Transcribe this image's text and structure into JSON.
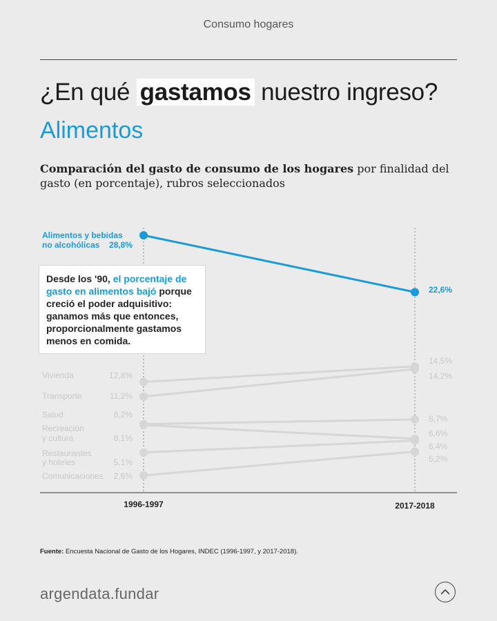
{
  "header": {
    "section": "Consumo hogares"
  },
  "title": {
    "pre": "¿En qué ",
    "highlight": "gastamos",
    "post": " nuestro ingreso?",
    "subtitle": "Alimentos"
  },
  "description": {
    "bold": "Comparación del gasto de consumo de los hogares",
    "rest": " por finalidad del gasto (en porcentaje), rubros seleccionados"
  },
  "callout": {
    "pre": "Desde los '90, ",
    "highlight": "el porcentaje de gasto en alimentos bajó",
    "post": " porque creció el poder adquisitivo: ganamos más que entonces, proporcionalmente gastamos menos en comida."
  },
  "footer": {
    "source_label": "Fuente:",
    "source_text": " Encuesta Nacional de Gasto de los Hogares, INDEC (1996-1997, y 2017-2018).",
    "brand": "argendata.fundar",
    "up_icon": "chevron-up-icon"
  },
  "colors": {
    "highlight": "#1a9bd7",
    "muted": "#d6d6d6",
    "muted_text": "#c8c8c8",
    "background": "#ebebeb"
  },
  "chart_data": {
    "type": "line",
    "title": "",
    "xlabel": "",
    "ylabel": "",
    "x": [
      "1996-1997",
      "2017-2018"
    ],
    "ylim": [
      0,
      30
    ],
    "grid": false,
    "series": [
      {
        "name": "Alimentos y bebidas no alcohólicas",
        "label_lines": [
          "Alimentos y bebidas",
          "no alcohólicas"
        ],
        "values": [
          28.8,
          22.6
        ],
        "labels": [
          "28,8%",
          "22,6%"
        ],
        "highlight": true
      },
      {
        "name": "Vivienda",
        "label_lines": [
          "Vivienda"
        ],
        "values": [
          12.8,
          14.5
        ],
        "labels": [
          "12,8%",
          "14,5%"
        ],
        "highlight": false
      },
      {
        "name": "Transporte",
        "label_lines": [
          "Transporte"
        ],
        "values": [
          11.2,
          14.2
        ],
        "labels": [
          "11,2%",
          "14,2%"
        ],
        "highlight": false
      },
      {
        "name": "Salud",
        "label_lines": [
          "Salud"
        ],
        "values": [
          8.2,
          8.7
        ],
        "labels": [
          "8,2%",
          "8,7%"
        ],
        "highlight": false
      },
      {
        "name": "Recreación y cultura",
        "label_lines": [
          "Recreación",
          "y cultura"
        ],
        "values": [
          8.1,
          6.6
        ],
        "labels": [
          "8,1%",
          "6,6%"
        ],
        "highlight": false
      },
      {
        "name": "Restaurantes y hoteles",
        "label_lines": [
          "Restaurantes",
          "y hoteles"
        ],
        "values": [
          5.1,
          6.4
        ],
        "labels": [
          "5,1%",
          "6,4%"
        ],
        "highlight": false
      },
      {
        "name": "Comunicaciones",
        "label_lines": [
          "Comunicaciones"
        ],
        "values": [
          2.6,
          5.2
        ],
        "labels": [
          "2,6%",
          "5,2%"
        ],
        "highlight": false
      }
    ]
  }
}
